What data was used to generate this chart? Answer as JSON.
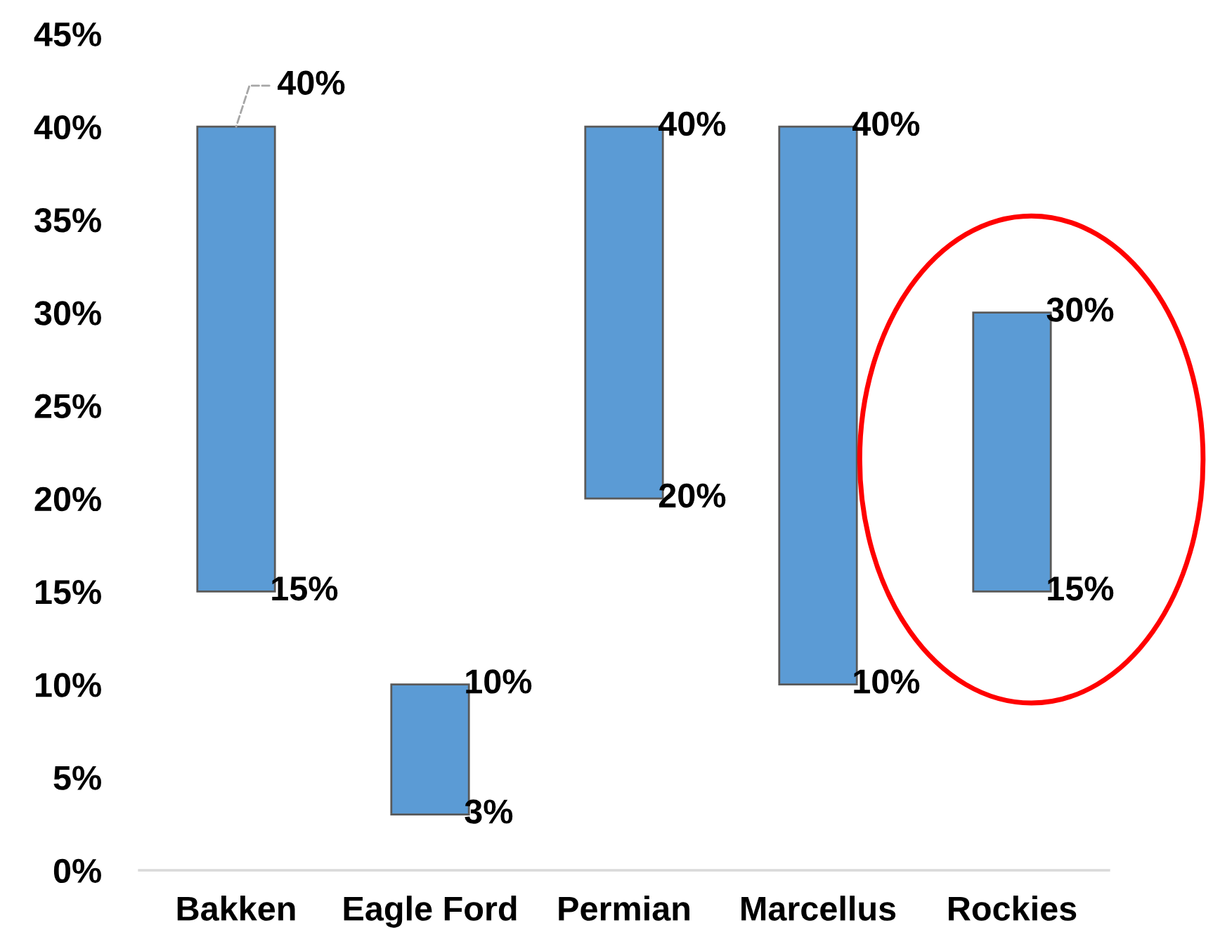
{
  "chart_data": {
    "type": "bar",
    "categories": [
      "Bakken",
      "Eagle Ford",
      "Permian",
      "Marcellus",
      "Rockies"
    ],
    "base": [
      15,
      3,
      20,
      10,
      15
    ],
    "values": [
      25,
      7,
      20,
      30,
      15
    ],
    "color": "#5b9bd5",
    "ylim": [
      0,
      45
    ],
    "yticks": [
      {
        "value": 0,
        "label": "0%"
      },
      {
        "value": 5,
        "label": "5%"
      },
      {
        "value": 10,
        "label": "10%"
      },
      {
        "value": 15,
        "label": "15%"
      },
      {
        "value": 20,
        "label": "20%"
      },
      {
        "value": 25,
        "label": "25%"
      },
      {
        "value": 30,
        "label": "30%"
      },
      {
        "value": 35,
        "label": "35%"
      },
      {
        "value": 40,
        "label": "40%"
      },
      {
        "value": 45,
        "label": "45%"
      }
    ],
    "annotations": [
      {
        "text": "40%",
        "x": "Bakken",
        "y": 40
      },
      {
        "text": "15%",
        "x": "Bakken",
        "y": 15
      },
      {
        "text": "10%",
        "x": "Eagle Ford",
        "y": 10
      },
      {
        "text": "3%",
        "x": "Eagle Ford",
        "y": 3
      },
      {
        "text": "40%",
        "x": "Permian",
        "y": 40
      },
      {
        "text": "20%",
        "x": "Permian",
        "y": 20
      },
      {
        "text": "40%",
        "x": "Marcellus",
        "y": 40
      },
      {
        "text": "10%",
        "x": "Marcellus",
        "y": 10
      },
      {
        "text": "30%",
        "x": "Rockies",
        "y": 30
      },
      {
        "text": "15%",
        "x": "Rockies",
        "y": 15
      }
    ]
  }
}
